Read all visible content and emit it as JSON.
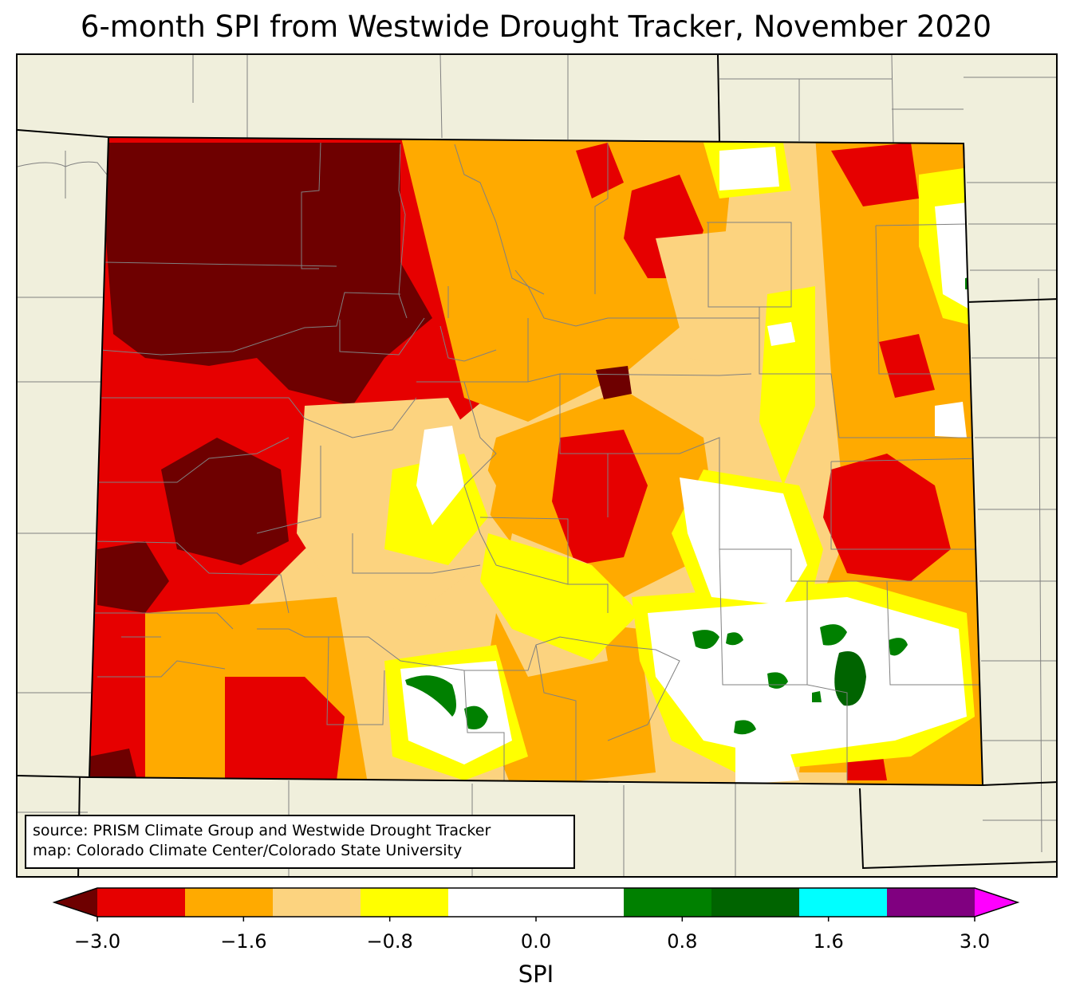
{
  "title": "6-month SPI from Westwide Drought Tracker, November 2020",
  "credit": {
    "line1": "source: PRISM Climate Group and Westwide Drought Tracker",
    "line2": "map: Colorado Climate Center/Colorado State University"
  },
  "colors": {
    "land_outside": "#f0efdc",
    "border": "#000000",
    "county": "#808080"
  },
  "legend": {
    "label": "SPI",
    "ticks": [
      "−3.0",
      "−1.6",
      "−0.8",
      "0.0",
      "0.8",
      "1.6",
      "3.0"
    ],
    "classes": [
      {
        "color": "#6e0000"
      },
      {
        "color": "#e60000"
      },
      {
        "color": "#ffaa00"
      },
      {
        "color": "#fcd37f"
      },
      {
        "color": "#ffff00"
      },
      {
        "color": "#ffffff"
      },
      {
        "color": "#ffffff"
      },
      {
        "color": "#008000"
      },
      {
        "color": "#006400"
      },
      {
        "color": "#00ffff"
      },
      {
        "color": "#800080"
      },
      {
        "color": "#ff00ff"
      }
    ]
  }
}
